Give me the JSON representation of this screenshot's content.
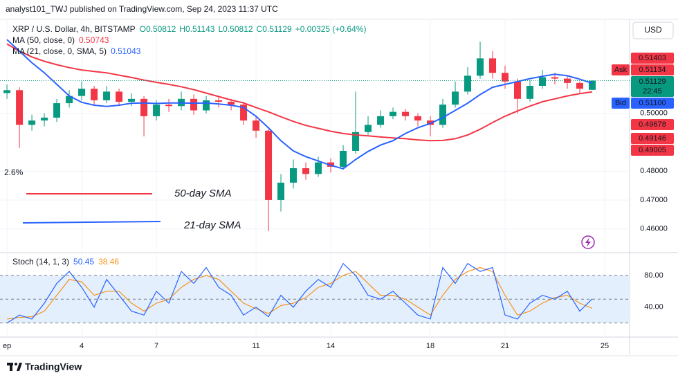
{
  "header": {
    "publisher": "analyst101_TWJ published on TradingView.com, Sep 24, 2023 11:37 UTC"
  },
  "currency_button": "USD",
  "footer": {
    "brand": "TradingView"
  },
  "chart_data": [
    {
      "type": "candlestick",
      "symbol": "XRP / U.S. Dollar, 4h, BITSTAMP",
      "ohlc_legend": [
        "O0.50812",
        "H0.51143",
        "L0.50812",
        "C0.51129",
        "+0.00325 (+0.64%)"
      ],
      "x": [
        1,
        1.5,
        2,
        2.5,
        3,
        3.5,
        4,
        4.5,
        5,
        5.5,
        6,
        6.5,
        7,
        7.5,
        8,
        8.5,
        9,
        9.5,
        10,
        10.5,
        11,
        11.5,
        12,
        12.5,
        13,
        13.5,
        14,
        14.5,
        15,
        15.5,
        16,
        16.5,
        17,
        17.5,
        18,
        18.5,
        19,
        19.5,
        20,
        20.5,
        21,
        21.5,
        22,
        22.5,
        23,
        23.5,
        24,
        24.5
      ],
      "open": [
        0.507,
        0.508,
        0.496,
        0.4975,
        0.4985,
        0.5035,
        0.506,
        0.5085,
        0.5045,
        0.5075,
        0.504,
        0.505,
        0.499,
        0.503,
        0.5025,
        0.505,
        0.501,
        0.5045,
        0.504,
        0.503,
        0.4975,
        0.494,
        0.47,
        0.476,
        0.481,
        0.479,
        0.483,
        0.4815,
        0.487,
        0.4935,
        0.496,
        0.499,
        0.5005,
        0.499,
        0.4975,
        0.496,
        0.503,
        0.5075,
        0.513,
        0.519,
        0.514,
        0.511,
        0.505,
        0.5095,
        0.5125,
        0.512,
        0.5105,
        0.50812
      ],
      "high": [
        0.51,
        0.509,
        0.4995,
        0.5,
        0.505,
        0.508,
        0.511,
        0.5095,
        0.5095,
        0.5085,
        0.507,
        0.506,
        0.5045,
        0.505,
        0.5075,
        0.5065,
        0.506,
        0.5055,
        0.505,
        0.504,
        0.499,
        0.4945,
        0.479,
        0.484,
        0.483,
        0.485,
        0.4845,
        0.489,
        0.5075,
        0.499,
        0.501,
        0.502,
        0.5015,
        0.5,
        0.499,
        0.505,
        0.511,
        0.516,
        0.5248,
        0.5215,
        0.5165,
        0.512,
        0.5115,
        0.515,
        0.514,
        0.513,
        0.511,
        0.51143
      ],
      "low": [
        0.505,
        0.488,
        0.494,
        0.4955,
        0.497,
        0.502,
        0.5045,
        0.503,
        0.5035,
        0.5025,
        0.5025,
        0.492,
        0.4975,
        0.5005,
        0.501,
        0.4995,
        0.5,
        0.502,
        0.501,
        0.496,
        0.4915,
        0.4592,
        0.466,
        0.474,
        0.477,
        0.478,
        0.4795,
        0.4805,
        0.486,
        0.4925,
        0.495,
        0.498,
        0.4975,
        0.4955,
        0.492,
        0.495,
        0.502,
        0.5065,
        0.512,
        0.512,
        0.5085,
        0.5,
        0.504,
        0.5085,
        0.51,
        0.5085,
        0.507,
        0.50812
      ],
      "close": [
        0.508,
        0.496,
        0.4975,
        0.4985,
        0.5035,
        0.506,
        0.5085,
        0.5045,
        0.5075,
        0.504,
        0.505,
        0.499,
        0.503,
        0.5025,
        0.505,
        0.501,
        0.5045,
        0.504,
        0.503,
        0.4975,
        0.494,
        0.47,
        0.476,
        0.481,
        0.479,
        0.483,
        0.4815,
        0.487,
        0.4935,
        0.496,
        0.499,
        0.5005,
        0.499,
        0.4975,
        0.496,
        0.503,
        0.5075,
        0.513,
        0.519,
        0.514,
        0.511,
        0.505,
        0.5095,
        0.5125,
        0.512,
        0.5105,
        0.5085,
        0.51129
      ],
      "up_color": "#089981",
      "down_color": "#f23645",
      "series": [
        {
          "name": "MA (50, close, 0)",
          "value_label": "0.50743",
          "color": "#f23645",
          "values": [
            0.524,
            0.5215,
            0.5195,
            0.518,
            0.5168,
            0.5158,
            0.515,
            0.5145,
            0.514,
            0.5132,
            0.5124,
            0.5115,
            0.5107,
            0.51,
            0.5092,
            0.5082,
            0.507,
            0.5058,
            0.5046,
            0.5036,
            0.502,
            0.5005,
            0.4988,
            0.4972,
            0.4958,
            0.4948,
            0.4938,
            0.493,
            0.4925,
            0.4922,
            0.4918,
            0.4915,
            0.4912,
            0.4908,
            0.4905,
            0.4906,
            0.4912,
            0.4925,
            0.4945,
            0.4968,
            0.499,
            0.5008,
            0.5025,
            0.504,
            0.505,
            0.506,
            0.5068,
            0.5074
          ]
        },
        {
          "name": "MA (21, close, 0, SMA, 5)",
          "value_label": "0.51043",
          "color": "#2962ff",
          "values": [
            0.5255,
            0.5215,
            0.5175,
            0.514,
            0.51,
            0.506,
            0.5038,
            0.5028,
            0.5024,
            0.5028,
            0.5035,
            0.5036,
            0.5034,
            0.5036,
            0.5036,
            0.5035,
            0.5036,
            0.5032,
            0.5028,
            0.502,
            0.499,
            0.495,
            0.4905,
            0.487,
            0.485,
            0.4835,
            0.482,
            0.4808,
            0.484,
            0.4868,
            0.489,
            0.4905,
            0.493,
            0.495,
            0.4965,
            0.4985,
            0.501,
            0.5035,
            0.5065,
            0.509,
            0.51,
            0.511,
            0.512,
            0.5128,
            0.5135,
            0.513,
            0.5118,
            0.5104
          ]
        }
      ],
      "xlim": [
        0.72,
        26
      ],
      "xticks": [
        {
          "value": 1,
          "label": "ep"
        },
        4,
        7,
        11,
        14,
        18,
        21,
        25
      ],
      "ylim": [
        0.4525,
        0.5325
      ],
      "yticks": [
        {
          "value": 0.5,
          "label": "0.50000"
        },
        {
          "value": 0.48,
          "label": "0.48000"
        },
        {
          "value": 0.47,
          "label": "0.47000"
        },
        {
          "value": 0.46,
          "label": "0.46000"
        }
      ],
      "grid": true,
      "price_tags": [
        {
          "text": "0.51403",
          "color": "#f23645"
        },
        {
          "label": "Ask",
          "text": "0.51134",
          "color": "#f23645"
        },
        {
          "text": "0.51129",
          "sub": "22:45",
          "color": "#089981"
        },
        {
          "label": "Bid",
          "text": "0.51100",
          "color": "#2962ff"
        },
        {
          "text": "0.49678",
          "color": "#f23645"
        },
        {
          "text": "0.49146",
          "color": "#f23645"
        },
        {
          "text": "0.49005",
          "color": "#f23645"
        }
      ],
      "annotations": [
        {
          "text": "50-day SMA",
          "color": "#f23645"
        },
        {
          "text": "21-day SMA",
          "color": "#2962ff"
        },
        {
          "text": "2.6%",
          "color": "#787b86"
        }
      ]
    },
    {
      "type": "line",
      "title": "Stoch (14, 1, 3)",
      "series": [
        {
          "value_label": "50.45",
          "color": "#2962ff",
          "values": [
            20,
            30,
            25,
            45,
            70,
            85,
            65,
            40,
            75,
            55,
            35,
            30,
            60,
            45,
            85,
            70,
            90,
            65,
            55,
            30,
            40,
            28,
            55,
            40,
            60,
            75,
            65,
            95,
            80,
            55,
            50,
            60,
            45,
            30,
            25,
            90,
            70,
            95,
            85,
            90,
            30,
            25,
            45,
            55,
            50,
            60,
            35,
            50.45
          ]
        },
        {
          "value_label": "38.46",
          "color": "#f7931a",
          "values": [
            25,
            27,
            28,
            35,
            55,
            75,
            72,
            55,
            60,
            60,
            45,
            35,
            45,
            50,
            65,
            75,
            80,
            75,
            60,
            45,
            38,
            32,
            42,
            45,
            52,
            65,
            70,
            80,
            85,
            70,
            55,
            55,
            50,
            40,
            30,
            55,
            75,
            85,
            90,
            85,
            55,
            30,
            35,
            45,
            52,
            55,
            45,
            38.46
          ]
        }
      ],
      "ylim": [
        4,
        107
      ],
      "yticks": [
        {
          "value": 80,
          "label": "80.00"
        },
        {
          "value": 40,
          "label": "40.00"
        }
      ],
      "levels": [
        80,
        50,
        20
      ],
      "band_color": "#e3effd"
    }
  ]
}
